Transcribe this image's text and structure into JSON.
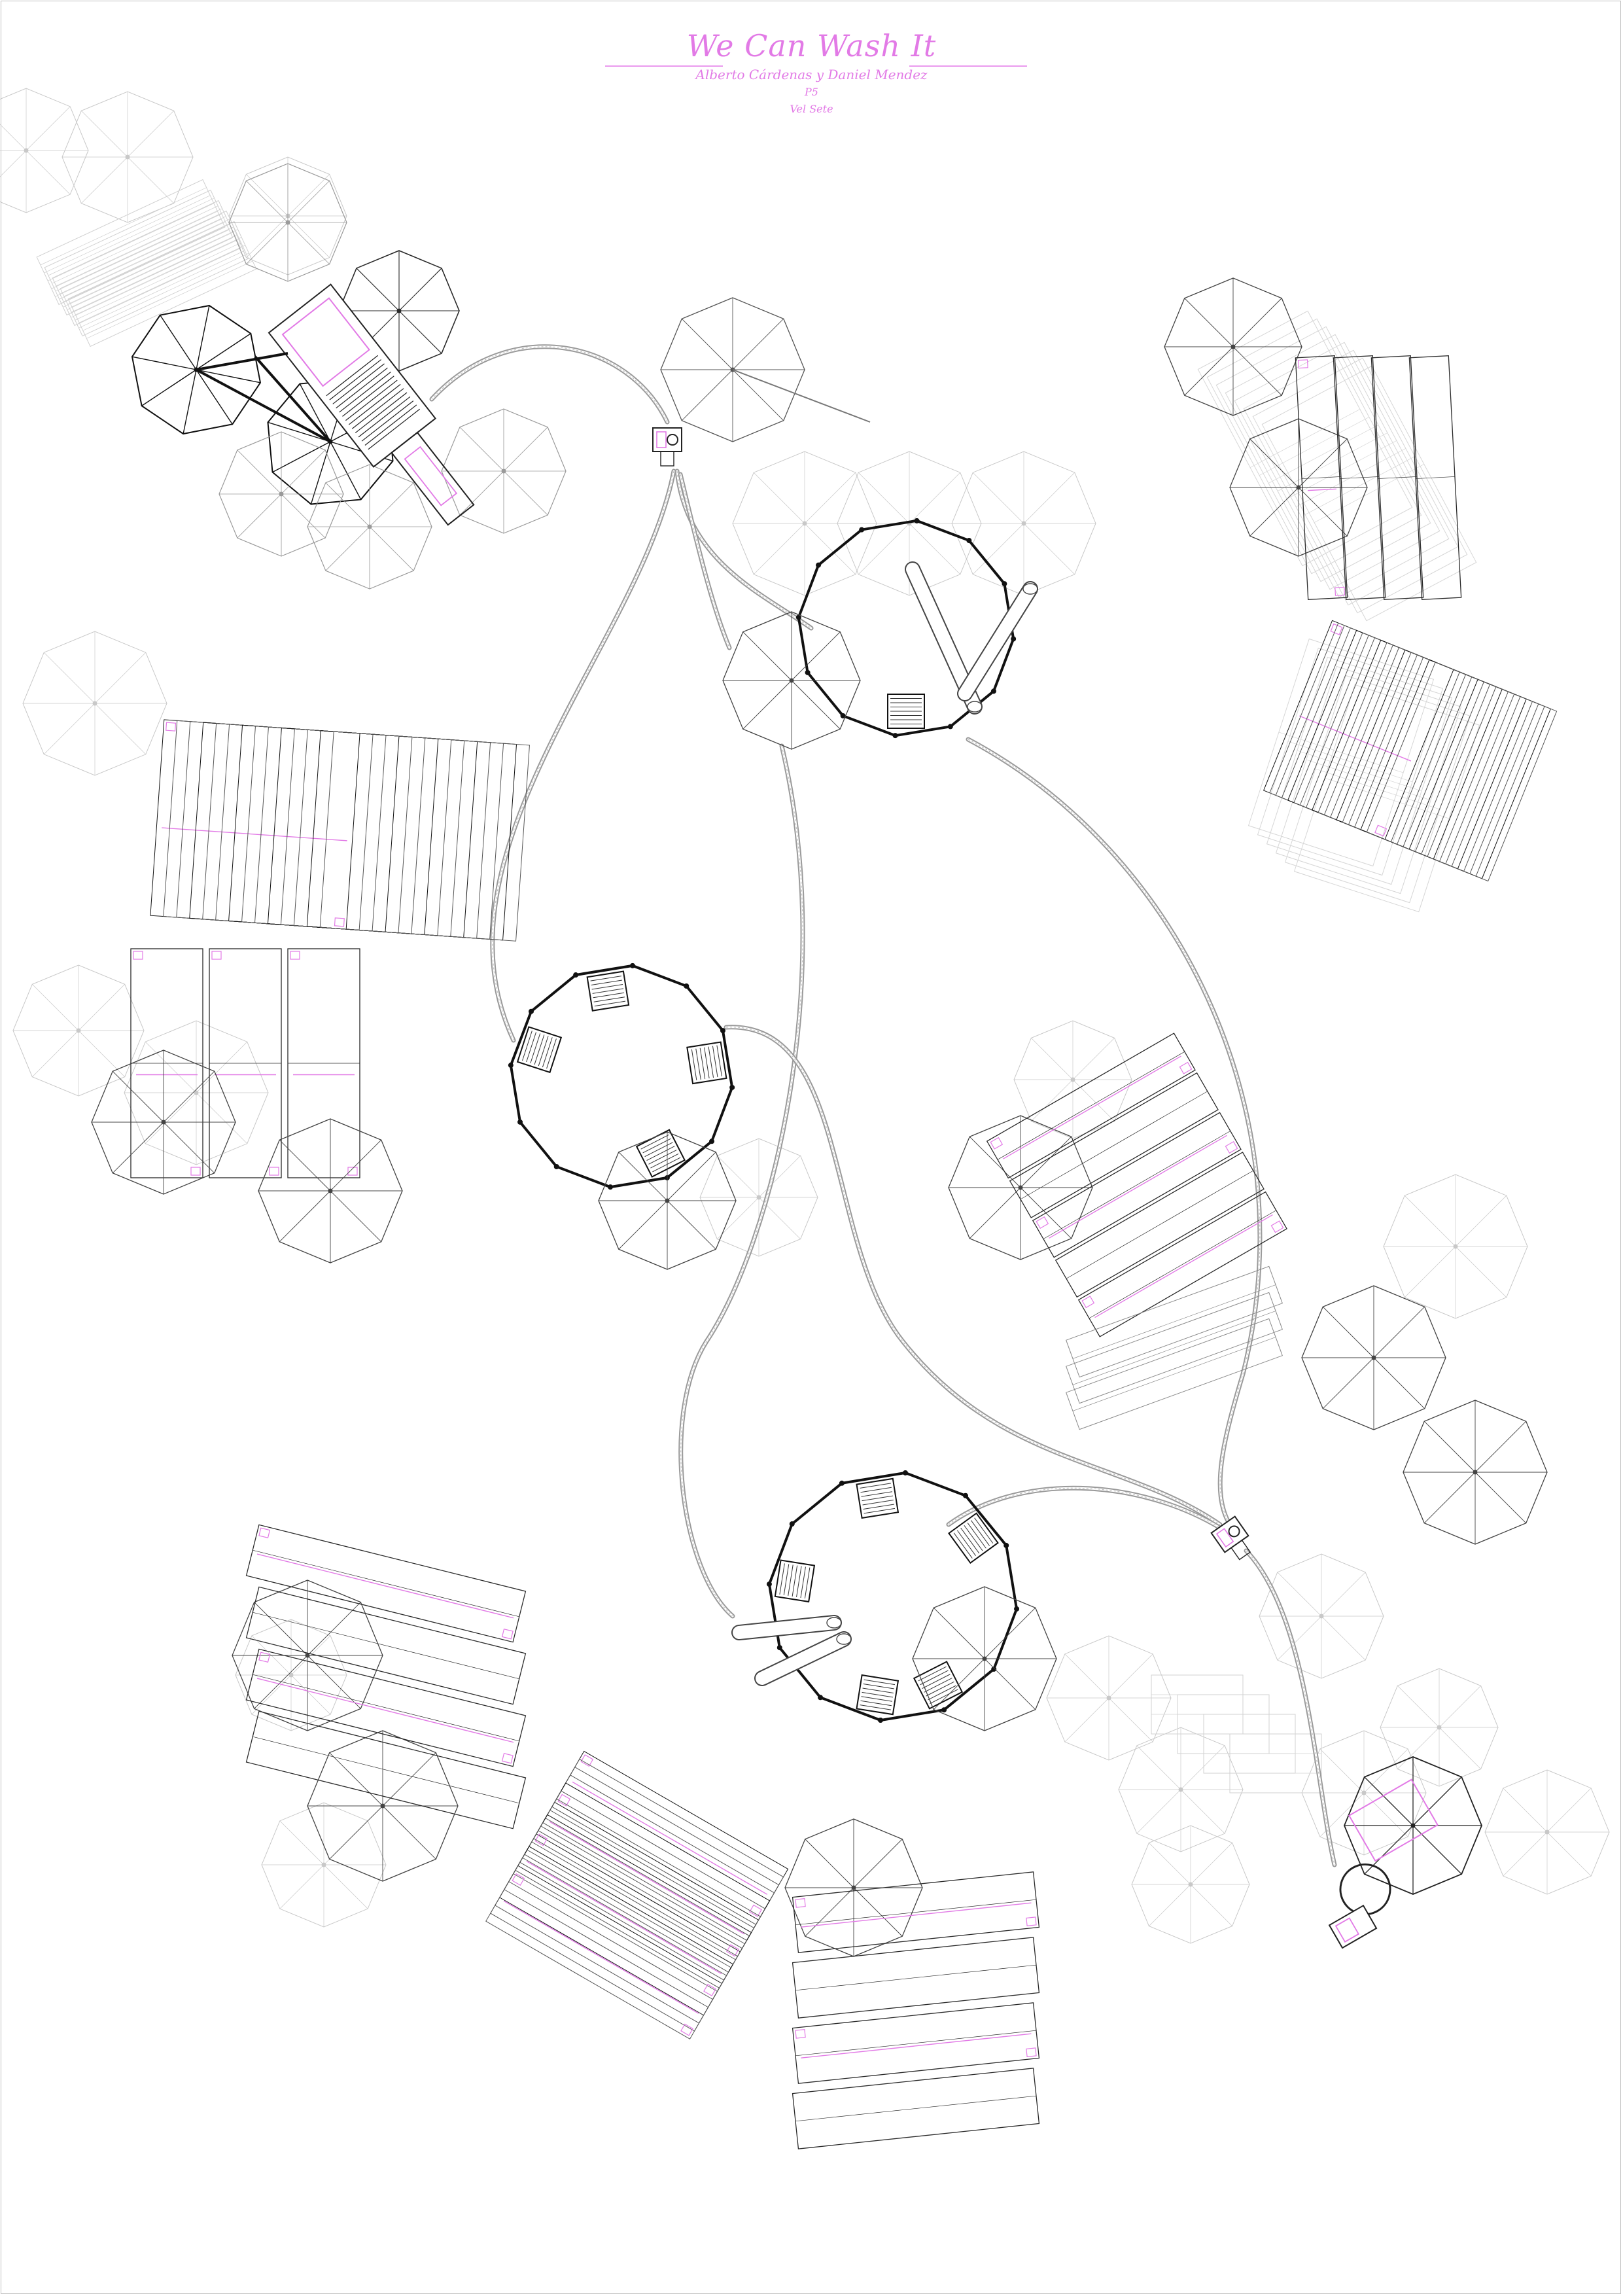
{
  "title": "We Can Wash It",
  "authors": "Alberto Cárdenas y Daniel Mendez",
  "sheet_label": "P5",
  "view_label": "Vel Sete",
  "colors": {
    "accent": "#e27ae6",
    "accent_light": "#ea9aee",
    "line": "#2a2a2a",
    "faint": "#c8c8c8",
    "path": "#9a9a9a"
  },
  "icons": [
    "umbrella-icon",
    "bench-icon",
    "pipe-icon",
    "vehicle-icon",
    "connector-icon"
  ]
}
